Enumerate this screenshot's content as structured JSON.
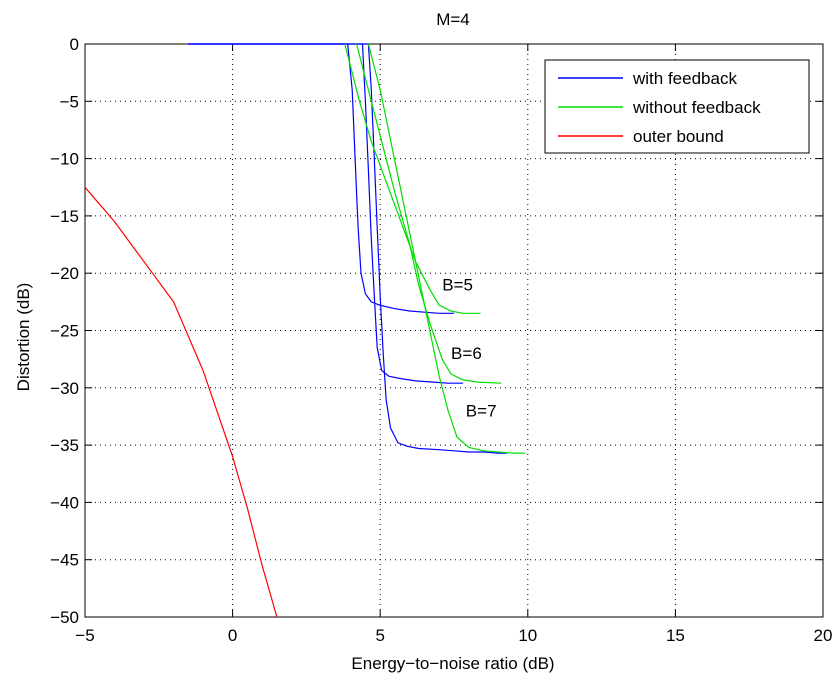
{
  "chart_data": {
    "type": "line",
    "title": "M=4",
    "xlabel": "Energy−to−noise ratio (dB)",
    "ylabel": "Distortion (dB)",
    "xlim": [
      -5,
      20
    ],
    "ylim": [
      -50,
      0
    ],
    "xticks": [
      -5,
      0,
      5,
      10,
      15,
      20
    ],
    "yticks": [
      0,
      -5,
      -10,
      -15,
      -20,
      -25,
      -30,
      -35,
      -40,
      -45,
      -50
    ],
    "xtick_labels": [
      "−5",
      "0",
      "5",
      "10",
      "15",
      "20"
    ],
    "ytick_labels": [
      "0",
      "−5",
      "−10",
      "−15",
      "−20",
      "−25",
      "−30",
      "−35",
      "−40",
      "−45",
      "−50"
    ],
    "grid": true,
    "legend_position": "top-right",
    "legend": [
      {
        "label": "with feedback",
        "color": "#0000ff"
      },
      {
        "label": "without feedback",
        "color": "#00dd00"
      },
      {
        "label": "outer bound",
        "color": "#ff0000"
      }
    ],
    "annotations": [
      {
        "text": "B=5",
        "x": 7.1,
        "y": -21.5
      },
      {
        "text": "B=6",
        "x": 7.4,
        "y": -27.5
      },
      {
        "text": "B=7",
        "x": 7.9,
        "y": -32.5
      }
    ],
    "series": [
      {
        "group": "with feedback",
        "color": "#0000ff",
        "x": [
          -1.5,
          3.9,
          4.05,
          4.15,
          4.25,
          4.35,
          4.5,
          4.7,
          5.0,
          5.5,
          6.0,
          6.5,
          7.0,
          7.5
        ],
        "y": [
          0,
          0,
          -4,
          -10,
          -16,
          -20,
          -21.8,
          -22.5,
          -22.8,
          -23.1,
          -23.3,
          -23.4,
          -23.5,
          -23.5
        ]
      },
      {
        "group": "with feedback",
        "color": "#0000ff",
        "x": [
          -1.5,
          4.4,
          4.5,
          4.6,
          4.7,
          4.8,
          4.9,
          5.05,
          5.3,
          5.7,
          6.2,
          6.8,
          7.3,
          7.8
        ],
        "y": [
          0,
          0,
          -5,
          -11,
          -17,
          -22,
          -26.5,
          -28.5,
          -29,
          -29.2,
          -29.4,
          -29.5,
          -29.6,
          -29.6
        ]
      },
      {
        "group": "with feedback",
        "color": "#0000ff",
        "x": [
          -1.5,
          4.6,
          4.7,
          4.8,
          4.9,
          5.0,
          5.1,
          5.2,
          5.35,
          5.6,
          5.9,
          6.3,
          7.0,
          7.5,
          8.0,
          8.5,
          9.0,
          9.3
        ],
        "y": [
          0,
          0,
          -4,
          -10,
          -16,
          -22,
          -27,
          -31,
          -33.5,
          -34.8,
          -35.1,
          -35.3,
          -35.4,
          -35.5,
          -35.6,
          -35.6,
          -35.7,
          -35.7
        ]
      },
      {
        "group": "without feedback",
        "color": "#00dd00",
        "x": [
          3.8,
          4.0,
          4.3,
          4.7,
          5.2,
          5.7,
          6.2,
          6.7,
          7.0,
          7.4,
          7.8,
          8.4
        ],
        "y": [
          0,
          -2,
          -5,
          -8.5,
          -12,
          -15.5,
          -19,
          -21.5,
          -22.8,
          -23.3,
          -23.5,
          -23.5
        ]
      },
      {
        "group": "without feedback",
        "color": "#00dd00",
        "x": [
          4.2,
          4.5,
          5.0,
          5.5,
          6.0,
          6.3,
          6.7,
          7.1,
          7.4,
          7.8,
          8.3,
          9.1
        ],
        "y": [
          0,
          -3,
          -8,
          -13,
          -17.5,
          -21,
          -24.5,
          -27.5,
          -28.8,
          -29.3,
          -29.5,
          -29.6
        ]
      },
      {
        "group": "without feedback",
        "color": "#00dd00",
        "x": [
          4.6,
          5.0,
          5.4,
          5.8,
          6.2,
          6.6,
          7.0,
          7.3,
          7.6,
          8.0,
          8.5,
          9.0,
          9.5,
          9.9
        ],
        "y": [
          0,
          -4,
          -9,
          -14,
          -19,
          -24,
          -29,
          -32,
          -34.3,
          -35.2,
          -35.5,
          -35.6,
          -35.7,
          -35.7
        ]
      },
      {
        "group": "outer bound",
        "color": "#ff0000",
        "x": [
          -5,
          -4,
          -3,
          -2,
          -1,
          0,
          0.5,
          1.0,
          1.5
        ],
        "y": [
          -12.5,
          -15.5,
          -19,
          -22.5,
          -28.5,
          -36,
          -40.5,
          -45.5,
          -50
        ]
      }
    ]
  }
}
